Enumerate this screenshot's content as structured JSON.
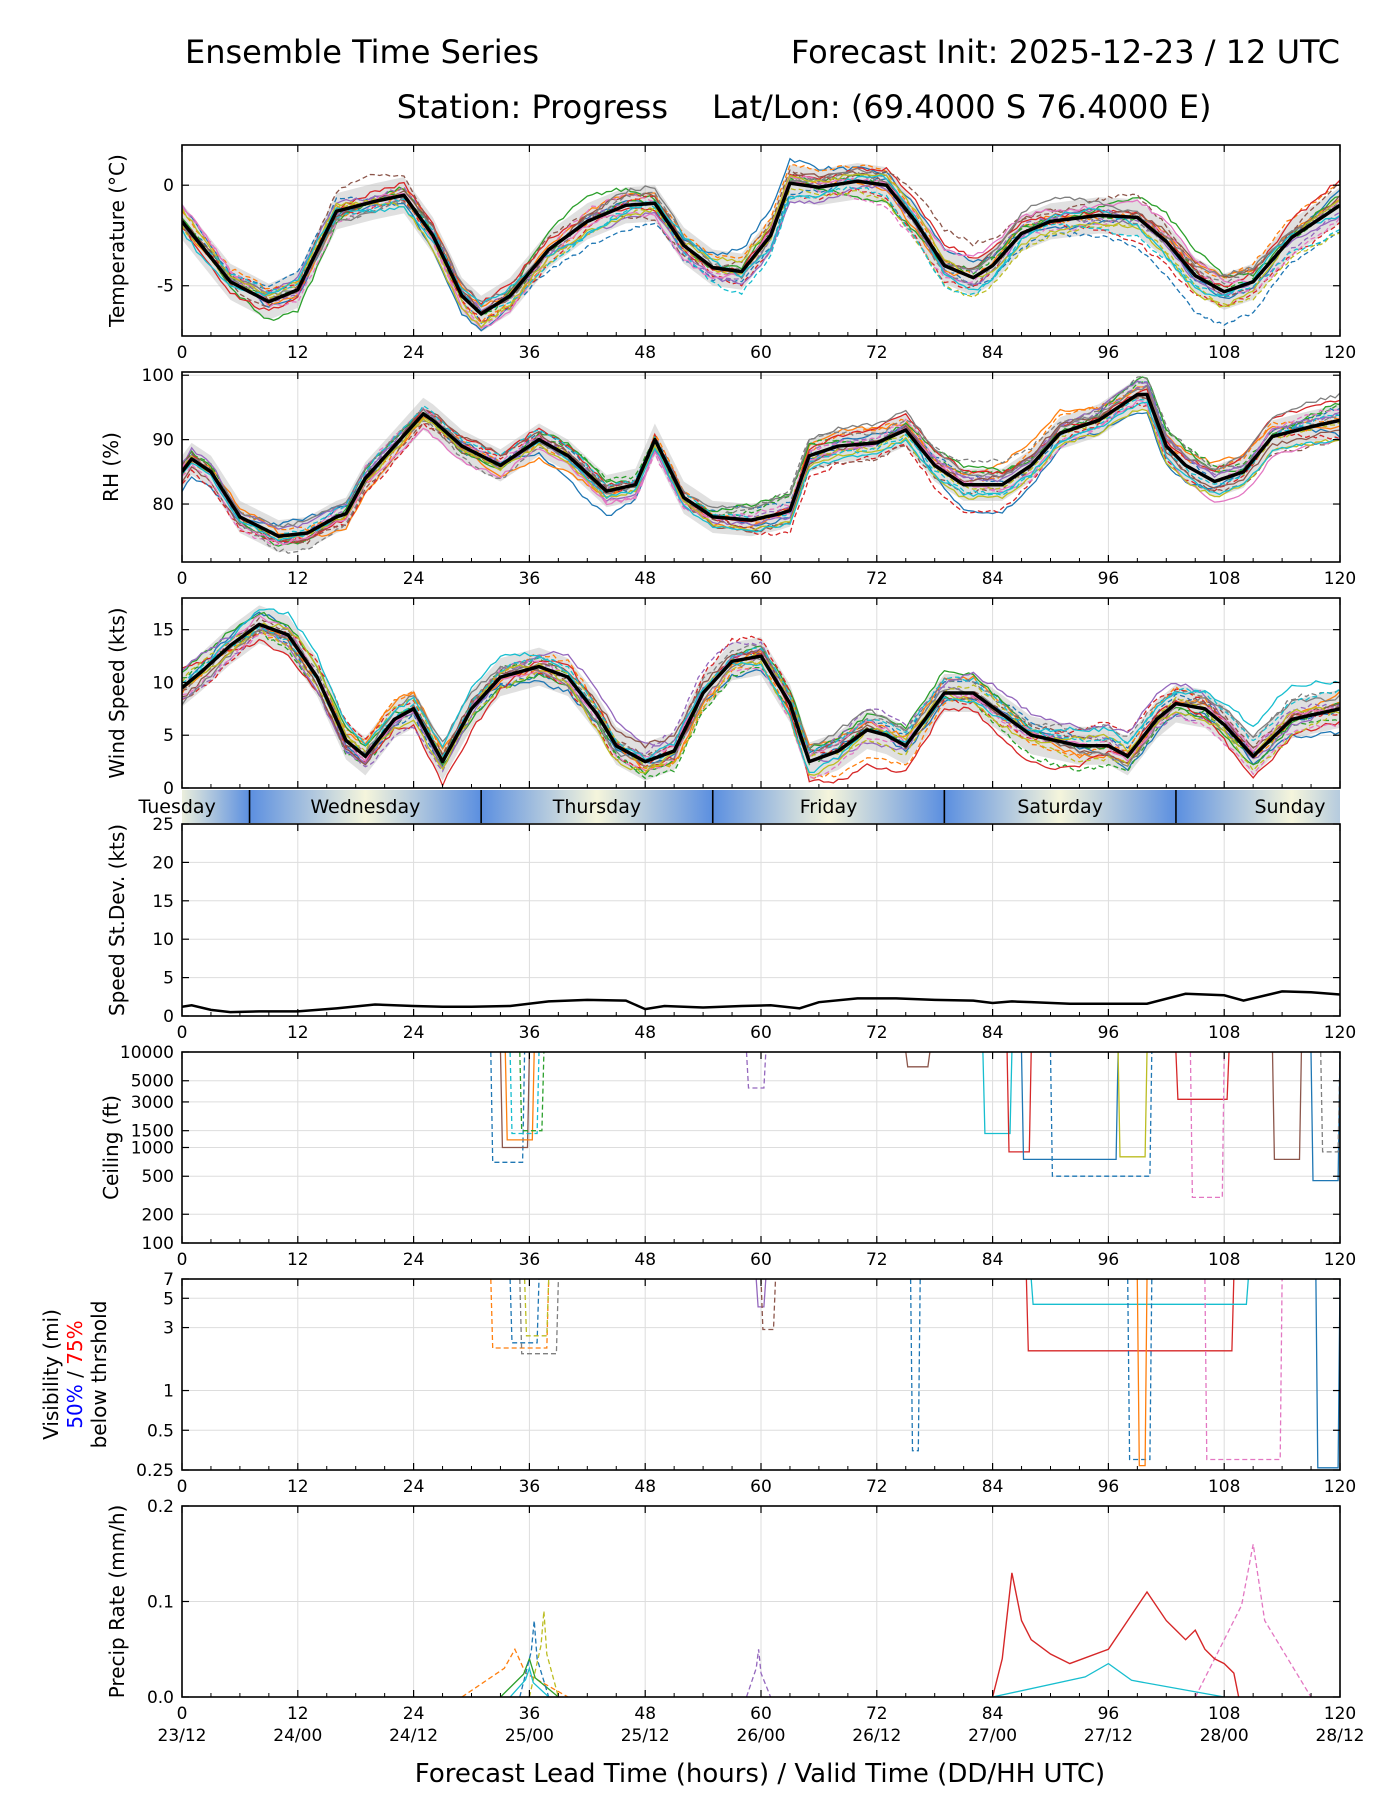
{
  "header": {
    "title_left": "Ensemble Time Series",
    "title_right": "Forecast Init: 2025-12-23 / 12 UTC",
    "station": "Station: Progress",
    "latlon": "Lat/Lon: (69.4000 S 76.4000 E)"
  },
  "x_axis": {
    "label": "Forecast Lead Time (hours) / Valid Time (DD/HH UTC)",
    "lead_ticks": [
      0,
      12,
      24,
      36,
      48,
      60,
      72,
      84,
      96,
      108,
      120
    ],
    "valid_ticks": [
      "23/12",
      "24/00",
      "24/12",
      "25/00",
      "25/12",
      "26/00",
      "26/12",
      "27/00",
      "27/12",
      "28/00",
      "28/12"
    ],
    "range": [
      0,
      120
    ]
  },
  "day_strip": {
    "days": [
      {
        "name": "Tuesday",
        "start": -8,
        "end": 7
      },
      {
        "name": "Wednesday",
        "start": 7,
        "end": 31
      },
      {
        "name": "Thursday",
        "start": 31,
        "end": 55
      },
      {
        "name": "Friday",
        "start": 55,
        "end": 79
      },
      {
        "name": "Saturday",
        "start": 79,
        "end": 103
      },
      {
        "name": "Sunday",
        "start": 103,
        "end": 127
      }
    ],
    "dark_color": "#5b8fe0",
    "light_color": "#f5f5dc"
  },
  "colors": {
    "members": [
      "#1f77b4",
      "#ff7f0e",
      "#2ca02c",
      "#d62728",
      "#9467bd",
      "#8c564b",
      "#e377c2",
      "#7f7f7f",
      "#bcbd22",
      "#17becf"
    ],
    "mean": "#000000",
    "spread": "#bbbbbb",
    "vis50": "#0000ff",
    "vis75": "#ff0000",
    "grid": "#dddddd"
  },
  "chart_data": [
    {
      "id": "temperature",
      "type": "line",
      "ylabel": "Temperature (°C)",
      "ylim": [
        -7.5,
        2.0
      ],
      "yticks": [
        0,
        -5
      ],
      "ytick_labels": [
        "0",
        "-5"
      ],
      "scale": "linear",
      "ensemble": true,
      "mean": {
        "x": [
          0,
          2,
          5,
          9,
          12,
          16,
          20,
          23,
          26,
          29,
          31,
          34,
          38,
          42,
          46,
          49,
          52,
          55,
          58,
          61,
          63,
          66,
          70,
          73,
          76,
          79,
          82,
          84,
          87,
          90,
          95,
          99,
          102,
          105,
          108,
          111,
          115,
          120
        ],
        "y": [
          -1.8,
          -3.0,
          -4.8,
          -5.8,
          -5.2,
          -1.3,
          -0.8,
          -0.5,
          -2.5,
          -5.5,
          -6.4,
          -5.5,
          -3.2,
          -1.8,
          -1.0,
          -0.9,
          -3.0,
          -4.1,
          -4.3,
          -2.5,
          0.1,
          -0.1,
          0.2,
          0.0,
          -1.8,
          -4.0,
          -4.6,
          -4.0,
          -2.4,
          -1.8,
          -1.5,
          -1.6,
          -2.8,
          -4.5,
          -5.3,
          -4.8,
          -2.6,
          -1.0
        ]
      },
      "spread": 0.9
    },
    {
      "id": "rh",
      "type": "line",
      "ylabel": "RH (%)",
      "ylim": [
        71,
        100.5
      ],
      "yticks": [
        80,
        90,
        100
      ],
      "ytick_labels": [
        "80",
        "90",
        "100"
      ],
      "scale": "linear",
      "ensemble": true,
      "mean": {
        "x": [
          0,
          1,
          3,
          6,
          10,
          13,
          16,
          17,
          19,
          22,
          25,
          26,
          29,
          33,
          37,
          40,
          44,
          47,
          49,
          52,
          55,
          59,
          62,
          63,
          65,
          68,
          72,
          75,
          78,
          81,
          85,
          88,
          91,
          95,
          99,
          100,
          102,
          104,
          107,
          110,
          113,
          117,
          120
        ],
        "y": [
          85,
          87,
          85,
          78,
          75,
          75.5,
          78,
          78.5,
          84,
          89,
          94,
          93,
          89,
          86,
          90,
          87.5,
          82,
          83,
          90,
          81,
          78,
          77.5,
          78.5,
          79,
          87.5,
          89,
          89.5,
          91.5,
          86,
          83,
          83,
          86,
          91,
          93,
          97,
          97,
          89,
          86,
          83.5,
          85,
          90.5,
          92,
          93
        ]
      },
      "spread": 2.5
    },
    {
      "id": "wind",
      "type": "line",
      "ylabel": "Wind Speed (kts)",
      "ylim": [
        0,
        18
      ],
      "yticks": [
        0,
        5,
        10,
        15
      ],
      "ytick_labels": [
        "0",
        "5",
        "10",
        "15"
      ],
      "scale": "linear",
      "ensemble": true,
      "mean": {
        "x": [
          0,
          2,
          5,
          8,
          11,
          14,
          17,
          19,
          22,
          24,
          27,
          30,
          33,
          37,
          40,
          43,
          45,
          48,
          51,
          54,
          57,
          60,
          63,
          65,
          68,
          71,
          73,
          75,
          79,
          82,
          85,
          88,
          93,
          96,
          98,
          101,
          103,
          106,
          108,
          111,
          115,
          120
        ],
        "y": [
          9.5,
          11,
          13.5,
          15.5,
          14.5,
          10.5,
          4.5,
          3,
          6.5,
          7.5,
          2.5,
          7.5,
          10.5,
          11.5,
          10.5,
          7,
          4,
          2.5,
          3.5,
          9,
          12,
          12.5,
          8,
          2.5,
          3.5,
          5.5,
          5,
          4,
          9,
          9,
          7,
          5,
          4,
          4,
          3,
          6.5,
          8,
          7.5,
          6,
          3,
          6.5,
          7.5
        ]
      },
      "spread": 1.8
    },
    {
      "id": "speed_stdev",
      "type": "line",
      "ylabel": "Speed St.Dev. (kts)",
      "ylim": [
        0,
        25
      ],
      "yticks": [
        0,
        5,
        10,
        15,
        20,
        25
      ],
      "ytick_labels": [
        "0",
        "5",
        "10",
        "15",
        "20",
        "25"
      ],
      "scale": "linear",
      "ensemble": false,
      "mean": {
        "x": [
          0,
          1,
          3,
          5,
          8,
          12,
          16,
          20,
          24,
          27,
          30,
          34,
          38,
          42,
          46,
          48,
          50,
          54,
          58,
          61,
          64,
          66,
          70,
          74,
          78,
          82,
          84,
          86,
          88,
          92,
          98,
          100,
          104,
          108,
          110,
          114,
          117,
          120
        ],
        "y": [
          1.2,
          1.4,
          0.8,
          0.5,
          0.6,
          0.6,
          1.0,
          1.5,
          1.3,
          1.2,
          1.2,
          1.3,
          1.9,
          2.1,
          2.0,
          0.9,
          1.3,
          1.1,
          1.3,
          1.4,
          1.0,
          1.8,
          2.3,
          2.3,
          2.1,
          2.0,
          1.7,
          1.9,
          1.8,
          1.6,
          1.6,
          1.6,
          2.9,
          2.7,
          2.0,
          3.2,
          3.1,
          2.8
        ]
      }
    },
    {
      "id": "ceiling",
      "type": "line",
      "ylabel": "Ceiling (ft)",
      "ylim": [
        100,
        10000
      ],
      "scale": "log",
      "yticks": [
        100,
        200,
        500,
        1000,
        1500,
        3000,
        5000,
        10000
      ],
      "ytick_labels": [
        "100",
        "200",
        "500",
        "1000",
        "1500",
        "3000",
        "5000",
        "10000"
      ],
      "events": [
        {
          "c": 0,
          "d": true,
          "x0": 32,
          "x1": 35.5,
          "v": 700
        },
        {
          "c": 5,
          "d": false,
          "x0": 33,
          "x1": 36,
          "v": 1000
        },
        {
          "c": 1,
          "d": false,
          "x0": 33.5,
          "x1": 36.5,
          "v": 1200
        },
        {
          "c": 9,
          "d": true,
          "x0": 34,
          "x1": 37,
          "v": 1400
        },
        {
          "c": 2,
          "d": true,
          "x0": 35,
          "x1": 37.5,
          "v": 1500
        },
        {
          "c": 4,
          "d": true,
          "x0": 58.5,
          "x1": 60.5,
          "v": 4200
        },
        {
          "c": 5,
          "d": false,
          "x0": 75,
          "x1": 77.5,
          "v": 7000
        },
        {
          "c": 9,
          "d": false,
          "x0": 83,
          "x1": 86,
          "v": 1400
        },
        {
          "c": 3,
          "d": false,
          "x0": 85.5,
          "x1": 88,
          "v": 900
        },
        {
          "c": 0,
          "d": false,
          "x0": 87,
          "x1": 97,
          "v": 750
        },
        {
          "c": 0,
          "d": true,
          "x0": 90,
          "x1": 100.5,
          "v": 500
        },
        {
          "c": 8,
          "d": false,
          "x0": 97,
          "x1": 100,
          "v": 800
        },
        {
          "c": 3,
          "d": false,
          "x0": 103,
          "x1": 108.5,
          "v": 3200
        },
        {
          "c": 6,
          "d": true,
          "x0": 104.5,
          "x1": 108,
          "v": 300
        },
        {
          "c": 5,
          "d": false,
          "x0": 113,
          "x1": 116,
          "v": 750
        },
        {
          "c": 0,
          "d": false,
          "x0": 117,
          "x1": 120,
          "v": 450
        },
        {
          "c": 7,
          "d": true,
          "x0": 118,
          "x1": 120,
          "v": 900
        }
      ]
    },
    {
      "id": "visibility",
      "type": "line",
      "ylabel": "Visibility (mi)",
      "ylabel_50": "50%",
      "ylabel_sep": " / ",
      "ylabel_75": "75%",
      "ylabel_sub": "below thrshold",
      "ylim": [
        0.25,
        7
      ],
      "scale": "log",
      "yticks": [
        0.25,
        0.5,
        1,
        3,
        5,
        7
      ],
      "ytick_labels": [
        "0.25",
        "0.5",
        "1",
        "3",
        "5",
        "7"
      ],
      "events": [
        {
          "c": 1,
          "d": true,
          "x0": 32,
          "x1": 38,
          "v": 2.1
        },
        {
          "c": 0,
          "d": true,
          "x0": 34,
          "x1": 37,
          "v": 2.3
        },
        {
          "c": 7,
          "d": true,
          "x0": 35,
          "x1": 39,
          "v": 1.9
        },
        {
          "c": 8,
          "d": true,
          "x0": 35.5,
          "x1": 38,
          "v": 2.6
        },
        {
          "c": 4,
          "d": false,
          "x0": 59.5,
          "x1": 60.5,
          "v": 4.3
        },
        {
          "c": 5,
          "d": true,
          "x0": 60,
          "x1": 61.5,
          "v": 2.9
        },
        {
          "c": 0,
          "d": true,
          "x0": 75.5,
          "x1": 76.5,
          "v": 0.35
        },
        {
          "c": 3,
          "d": false,
          "x0": 87.5,
          "x1": 109,
          "v": 2.0
        },
        {
          "c": 9,
          "d": false,
          "x0": 88,
          "x1": 110.5,
          "v": 4.5
        },
        {
          "c": 0,
          "d": true,
          "x0": 98,
          "x1": 100.5,
          "v": 0.3
        },
        {
          "c": 1,
          "d": false,
          "x0": 99,
          "x1": 100,
          "v": 0.27
        },
        {
          "c": 6,
          "d": true,
          "x0": 106,
          "x1": 114,
          "v": 0.3
        },
        {
          "c": 0,
          "d": false,
          "x0": 117.5,
          "x1": 120,
          "v": 0.26
        }
      ]
    },
    {
      "id": "precip",
      "type": "line",
      "ylabel": "Precip Rate (mm/h)",
      "ylim": [
        0,
        0.2
      ],
      "yticks": [
        0.0,
        0.1,
        0.2
      ],
      "ytick_labels": [
        "0.0",
        "0.1",
        "0.2"
      ],
      "scale": "linear",
      "events": [
        {
          "c": 1,
          "d": true,
          "x0": 29,
          "x1": 40,
          "v": 0.05
        },
        {
          "c": 2,
          "d": false,
          "x0": 33,
          "x1": 39,
          "v": 0.04
        },
        {
          "c": 0,
          "d": true,
          "x0": 35,
          "x1": 38,
          "v": 0.08
        },
        {
          "c": 8,
          "d": true,
          "x0": 36,
          "x1": 39,
          "v": 0.09
        },
        {
          "c": 9,
          "d": false,
          "x0": 34,
          "x1": 38,
          "v": 0.03
        },
        {
          "c": 4,
          "d": true,
          "x0": 58.5,
          "x1": 61,
          "v": 0.05
        },
        {
          "c": 6,
          "d": true,
          "x0": 105,
          "x1": 117,
          "v": 0.16
        },
        {
          "c": 9,
          "d": false,
          "x0": 84,
          "x1": 108,
          "v": 0.035
        }
      ],
      "red_series": {
        "x": [
          84,
          85,
          86,
          87,
          88,
          90,
          92,
          96,
          98,
          100,
          102,
          103,
          104,
          105,
          106,
          107,
          108,
          109,
          109.5
        ],
        "y": [
          0.0,
          0.04,
          0.13,
          0.08,
          0.06,
          0.045,
          0.035,
          0.05,
          0.08,
          0.11,
          0.08,
          0.07,
          0.06,
          0.07,
          0.05,
          0.04,
          0.035,
          0.025,
          0.0
        ]
      }
    }
  ]
}
